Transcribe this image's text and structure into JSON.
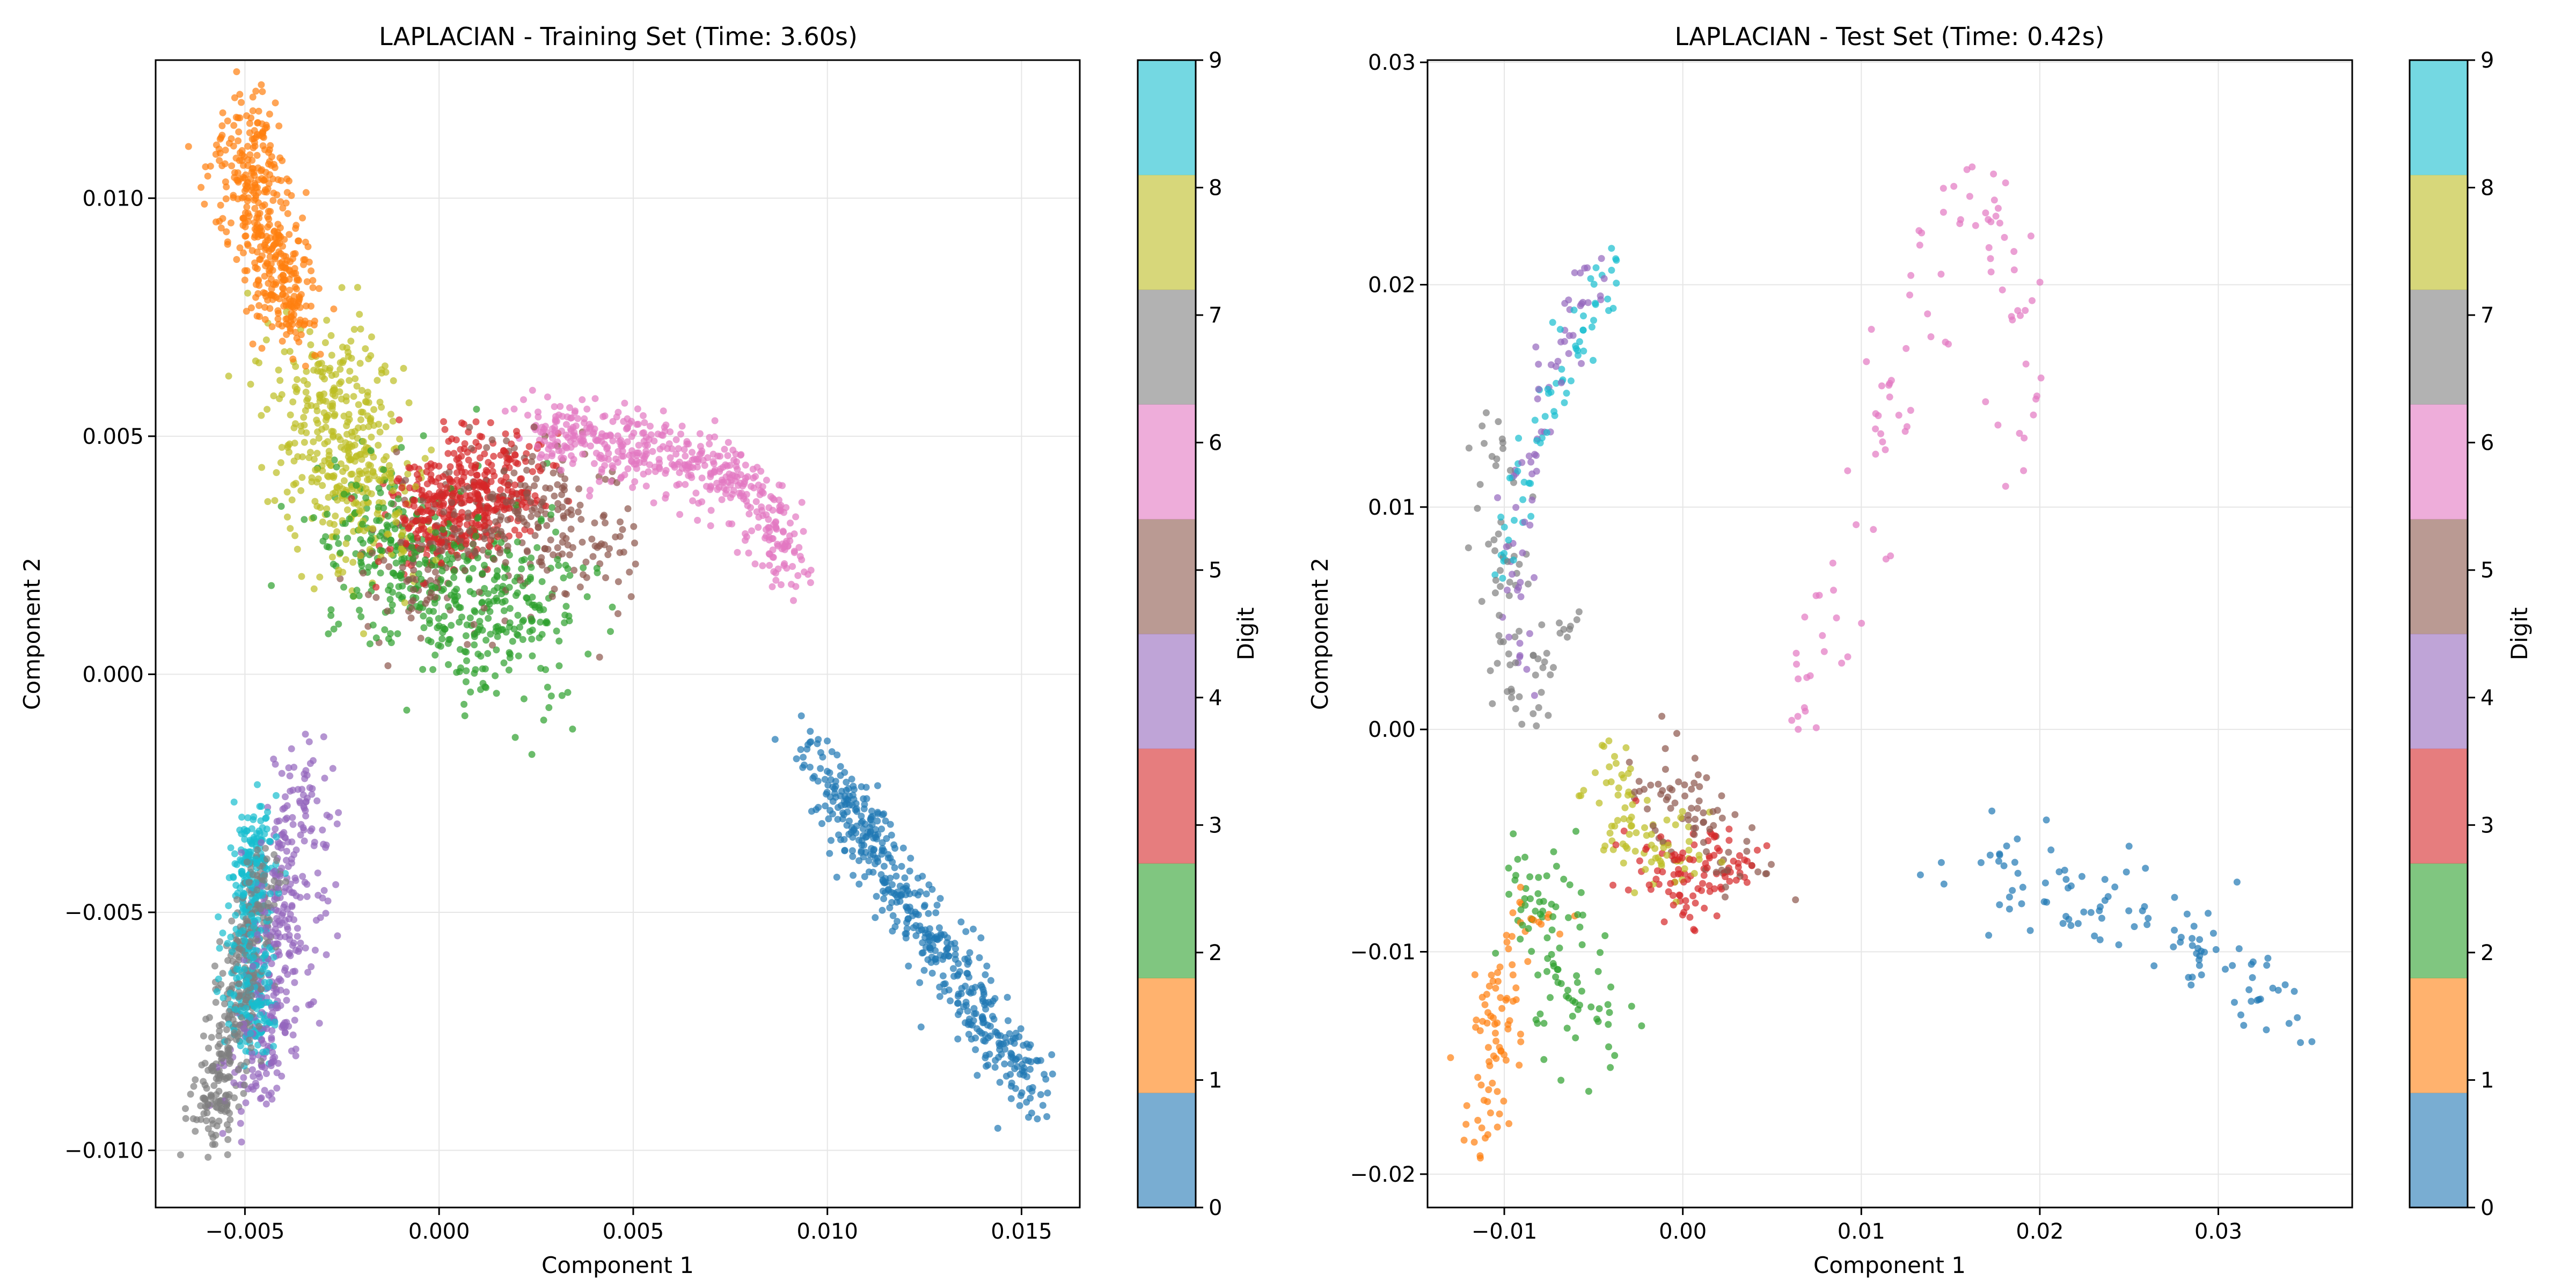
{
  "chart_data": [
    {
      "type": "scatter",
      "title": "LAPLACIAN - Training Set (Time: 3.60s)",
      "xlabel": "Component 1",
      "ylabel": "Component 2",
      "xlim": [
        -0.0073,
        0.0165
      ],
      "ylim": [
        -0.0112,
        0.0129
      ],
      "xticks": [
        -0.005,
        0.0,
        0.005,
        0.01,
        0.015
      ],
      "xtick_labels": [
        "−0.005",
        "0.000",
        "0.005",
        "0.010",
        "0.015"
      ],
      "yticks": [
        -0.01,
        -0.005,
        0.0,
        0.005,
        0.01
      ],
      "ytick_labels": [
        "−0.010",
        "−0.005",
        "0.000",
        "0.005",
        "0.010"
      ],
      "grid": true,
      "colorbar_label": "Digit",
      "colorbar_ticks": [
        "0",
        "1",
        "2",
        "3",
        "4",
        "5",
        "6",
        "7",
        "8",
        "9"
      ],
      "clusters": [
        {
          "digit": 0,
          "n": 500,
          "curve": [
            [
              0.0095,
              -0.0015
            ],
            [
              0.0115,
              -0.004
            ],
            [
              0.013,
              -0.006
            ],
            [
              0.0145,
              -0.0078
            ],
            [
              0.0153,
              -0.0088
            ]
          ],
          "spread": 0.00035
        },
        {
          "digit": 1,
          "n": 430,
          "curve": [
            [
              -0.005,
              0.0117
            ],
            [
              -0.0047,
              0.01
            ],
            [
              -0.0043,
              0.0085
            ],
            [
              -0.0036,
              0.0072
            ]
          ],
          "spread": 0.00045
        },
        {
          "digit": 2,
          "n": 480,
          "curve": [
            [
              -0.0022,
              0.003
            ],
            [
              -0.0005,
              0.0022
            ],
            [
              0.0012,
              0.0015
            ],
            [
              0.0028,
              0.0008
            ]
          ],
          "spread": 0.0009
        },
        {
          "digit": 3,
          "n": 420,
          "curve": [
            [
              -0.0008,
              0.003
            ],
            [
              0.0005,
              0.0038
            ],
            [
              0.002,
              0.0042
            ]
          ],
          "spread": 0.0006
        },
        {
          "digit": 4,
          "n": 360,
          "curve": [
            [
              -0.0035,
              -0.002
            ],
            [
              -0.004,
              -0.005
            ],
            [
              -0.0045,
              -0.008
            ],
            [
              -0.0048,
              -0.009
            ]
          ],
          "spread": 0.00045
        },
        {
          "digit": 5,
          "n": 340,
          "curve": [
            [
              -0.001,
              0.002
            ],
            [
              0.001,
              0.003
            ],
            [
              0.003,
              0.0035
            ],
            [
              0.004,
              0.0025
            ]
          ],
          "spread": 0.0008
        },
        {
          "digit": 6,
          "n": 480,
          "curve": [
            [
              0.0023,
              0.0052
            ],
            [
              0.005,
              0.0048
            ],
            [
              0.0072,
              0.0043
            ],
            [
              0.0085,
              0.0035
            ],
            [
              0.009,
              0.002
            ]
          ],
          "spread": 0.00035
        },
        {
          "digit": 7,
          "n": 380,
          "curve": [
            [
              -0.0045,
              -0.004
            ],
            [
              -0.0052,
              -0.007
            ],
            [
              -0.0058,
              -0.009
            ],
            [
              -0.006,
              -0.0098
            ]
          ],
          "spread": 0.0003
        },
        {
          "digit": 8,
          "n": 420,
          "curve": [
            [
              -0.003,
              0.0065
            ],
            [
              -0.0022,
              0.004
            ],
            [
              -0.0015,
              0.003
            ]
          ],
          "spread": 0.0008
        },
        {
          "digit": 9,
          "n": 360,
          "curve": [
            [
              -0.0047,
              -0.003
            ],
            [
              -0.0049,
              -0.006
            ],
            [
              -0.0048,
              -0.0078
            ]
          ],
          "spread": 0.0003
        }
      ]
    },
    {
      "type": "scatter",
      "title": "LAPLACIAN - Test Set (Time: 0.42s)",
      "xlabel": "Component 1",
      "ylabel": "Component 2",
      "xlim": [
        -0.0143,
        0.0375
      ],
      "ylim": [
        -0.0215,
        0.0301
      ],
      "xticks": [
        -0.01,
        0.0,
        0.01,
        0.02,
        0.03
      ],
      "xtick_labels": [
        "−0.01",
        "0.00",
        "0.01",
        "0.02",
        "0.03"
      ],
      "yticks": [
        -0.02,
        -0.01,
        0.0,
        0.01,
        0.02,
        0.03
      ],
      "ytick_labels": [
        "−0.02",
        "−0.01",
        "0.00",
        "0.01",
        "0.02",
        "0.03"
      ],
      "grid": true,
      "colorbar_label": "Digit",
      "colorbar_ticks": [
        "0",
        "1",
        "2",
        "3",
        "4",
        "5",
        "6",
        "7",
        "8",
        "9"
      ],
      "clusters": [
        {
          "digit": 0,
          "n": 110,
          "curve": [
            [
              0.016,
              -0.006
            ],
            [
              0.023,
              -0.008
            ],
            [
              0.029,
              -0.009
            ],
            [
              0.032,
              -0.012
            ],
            [
              0.035,
              -0.0145
            ]
          ],
          "spread": 0.0012
        },
        {
          "digit": 1,
          "n": 90,
          "curve": [
            [
              -0.008,
              -0.008
            ],
            [
              -0.01,
              -0.011
            ],
            [
              -0.011,
              -0.015
            ],
            [
              -0.011,
              -0.0185
            ]
          ],
          "spread": 0.0007
        },
        {
          "digit": 2,
          "n": 95,
          "curve": [
            [
              -0.0085,
              -0.006
            ],
            [
              -0.007,
              -0.011
            ],
            [
              -0.006,
              -0.014
            ],
            [
              -0.004,
              -0.012
            ]
          ],
          "spread": 0.0012
        },
        {
          "digit": 3,
          "n": 100,
          "curve": [
            [
              -0.002,
              -0.006
            ],
            [
              0.0,
              -0.007
            ],
            [
              0.003,
              -0.006
            ]
          ],
          "spread": 0.001
        },
        {
          "digit": 4,
          "n": 70,
          "curve": [
            [
              -0.005,
              0.021
            ],
            [
              -0.008,
              0.015
            ],
            [
              -0.0095,
              0.008
            ],
            [
              -0.009,
              0.002
            ]
          ],
          "spread": 0.0006
        },
        {
          "digit": 5,
          "n": 80,
          "curve": [
            [
              -0.002,
              -0.002
            ],
            [
              0.001,
              -0.004
            ],
            [
              0.004,
              -0.006
            ]
          ],
          "spread": 0.0011
        },
        {
          "digit": 6,
          "n": 100,
          "curve": [
            [
              0.006,
              0.0
            ],
            [
              0.009,
              0.007
            ],
            [
              0.012,
              0.016
            ],
            [
              0.016,
              0.025
            ],
            [
              0.019,
              0.021
            ],
            [
              0.019,
              0.012
            ]
          ],
          "spread": 0.0009
        },
        {
          "digit": 7,
          "n": 80,
          "curve": [
            [
              -0.01,
              0.014
            ],
            [
              -0.01,
              0.006
            ],
            [
              -0.009,
              0.0
            ],
            [
              -0.006,
              0.005
            ]
          ],
          "spread": 0.0008
        },
        {
          "digit": 8,
          "n": 85,
          "curve": [
            [
              -0.004,
              -0.002
            ],
            [
              -0.003,
              -0.005
            ],
            [
              -0.001,
              -0.006
            ],
            [
              0.001,
              -0.005
            ]
          ],
          "spread": 0.001
        },
        {
          "digit": 9,
          "n": 70,
          "curve": [
            [
              -0.003,
              0.022
            ],
            [
              -0.007,
              0.016
            ],
            [
              -0.009,
              0.011
            ],
            [
              -0.01,
              0.007
            ]
          ],
          "spread": 0.0006
        }
      ]
    }
  ],
  "colors": {
    "palette": [
      "#1f77b4",
      "#ff7f0e",
      "#2ca02c",
      "#d62728",
      "#9467bd",
      "#8c564b",
      "#e377c2",
      "#7f7f7f",
      "#bcbd22",
      "#17becf"
    ],
    "colorbar_alpha": 0.6,
    "grid": "#e6e6e6"
  }
}
